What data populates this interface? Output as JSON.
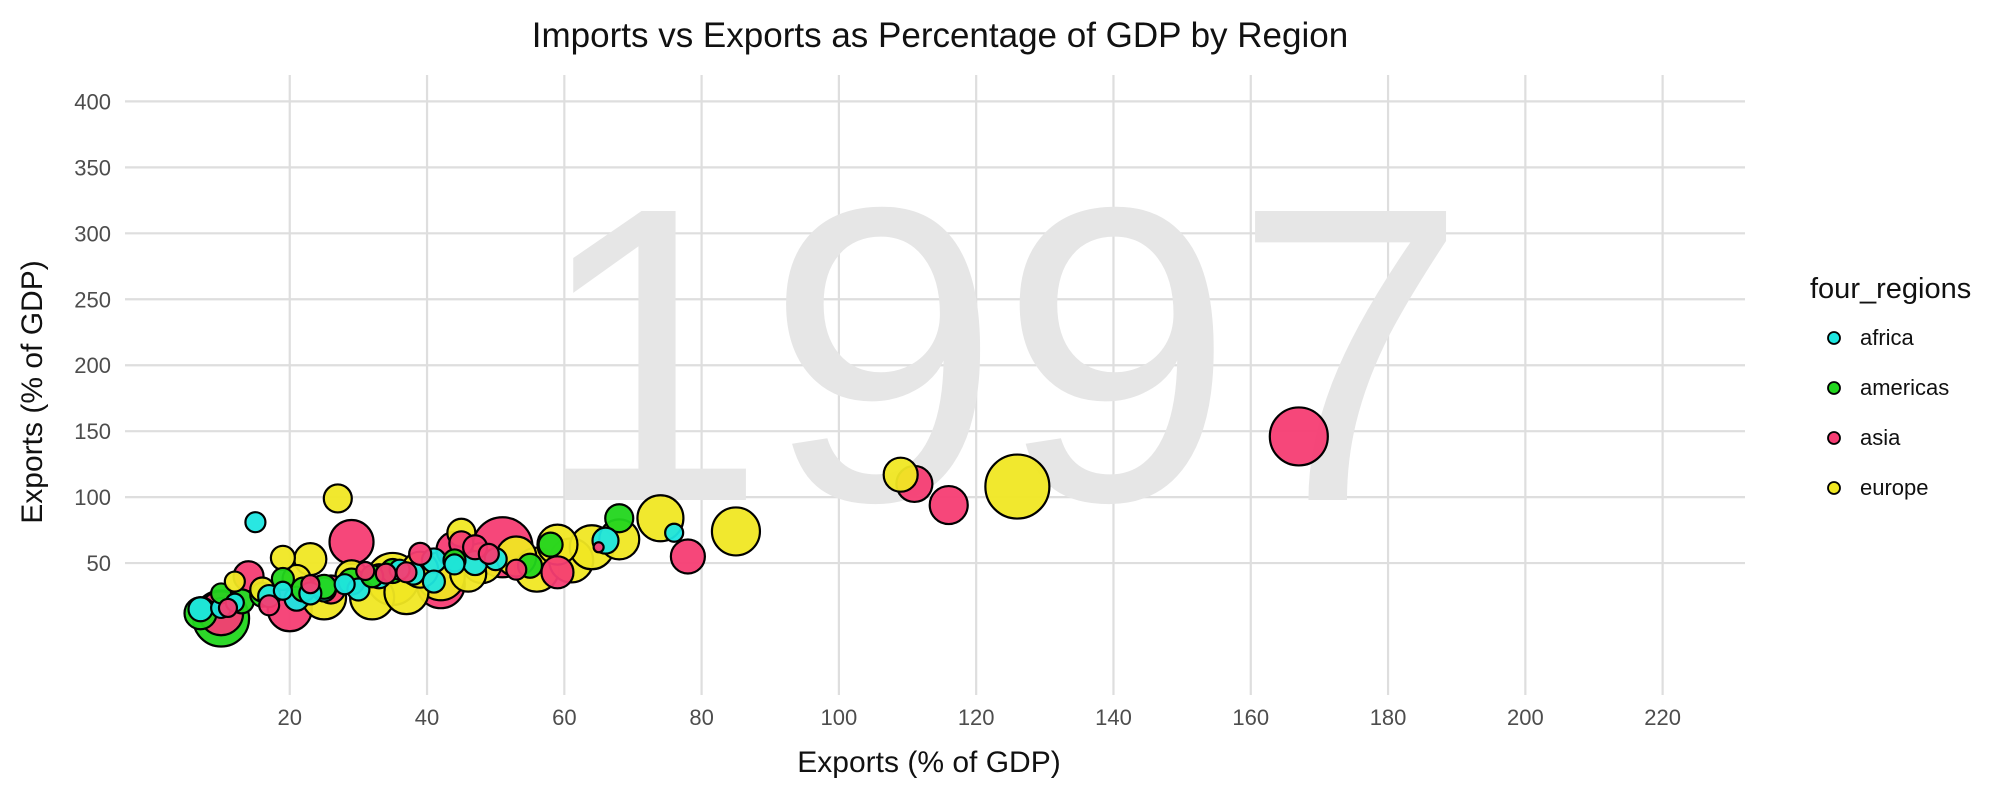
{
  "chart_data": {
    "type": "scatter",
    "title": "Imports vs Exports as Percentage of GDP by Region",
    "xlabel": "Exports (% of GDP)",
    "ylabel": "Exports (% of GDP)",
    "watermark_year": "1997",
    "xlim": [
      -4,
      232
    ],
    "ylim": [
      -50,
      420
    ],
    "x_ticks": [
      20,
      40,
      60,
      80,
      100,
      120,
      140,
      160,
      180,
      200,
      220
    ],
    "y_ticks": [
      50,
      100,
      150,
      200,
      250,
      300,
      350,
      400
    ],
    "grid": true,
    "legend_title": "four_regions",
    "legend_position": "right",
    "series": [
      {
        "name": "africa",
        "color": "#1ee6e0",
        "points": [
          {
            "x": 7,
            "y": 15,
            "s": 12
          },
          {
            "x": 10,
            "y": 16,
            "s": 10
          },
          {
            "x": 12,
            "y": 20,
            "s": 9
          },
          {
            "x": 15,
            "y": 81,
            "s": 10
          },
          {
            "x": 17,
            "y": 25,
            "s": 11
          },
          {
            "x": 19,
            "y": 29,
            "s": 9
          },
          {
            "x": 21,
            "y": 23,
            "s": 12
          },
          {
            "x": 23,
            "y": 27,
            "s": 11
          },
          {
            "x": 25,
            "y": 30,
            "s": 12
          },
          {
            "x": 28,
            "y": 34,
            "s": 10
          },
          {
            "x": 30,
            "y": 30,
            "s": 11
          },
          {
            "x": 33,
            "y": 40,
            "s": 12
          },
          {
            "x": 36,
            "y": 45,
            "s": 10
          },
          {
            "x": 38,
            "y": 42,
            "s": 11
          },
          {
            "x": 41,
            "y": 52,
            "s": 12
          },
          {
            "x": 41,
            "y": 36,
            "s": 11
          },
          {
            "x": 44,
            "y": 49,
            "s": 10
          },
          {
            "x": 47,
            "y": 50,
            "s": 12
          },
          {
            "x": 50,
            "y": 53,
            "s": 11
          },
          {
            "x": 66,
            "y": 67,
            "s": 13
          },
          {
            "x": 76,
            "y": 73,
            "s": 9
          }
        ]
      },
      {
        "name": "americas",
        "color": "#22d61e",
        "points": [
          {
            "x": 10,
            "y": 8,
            "s": 28
          },
          {
            "x": 7,
            "y": 12,
            "s": 16
          },
          {
            "x": 10,
            "y": 27,
            "s": 10
          },
          {
            "x": 13,
            "y": 21,
            "s": 12
          },
          {
            "x": 16,
            "y": 26,
            "s": 12
          },
          {
            "x": 19,
            "y": 38,
            "s": 11
          },
          {
            "x": 22,
            "y": 30,
            "s": 12
          },
          {
            "x": 25,
            "y": 32,
            "s": 12
          },
          {
            "x": 29,
            "y": 36,
            "s": 13
          },
          {
            "x": 32,
            "y": 40,
            "s": 11
          },
          {
            "x": 35,
            "y": 44,
            "s": 12
          },
          {
            "x": 44,
            "y": 52,
            "s": 11
          },
          {
            "x": 55,
            "y": 48,
            "s": 12
          },
          {
            "x": 58,
            "y": 64,
            "s": 12
          },
          {
            "x": 68,
            "y": 84,
            "s": 14
          }
        ]
      },
      {
        "name": "asia",
        "color": "#f53d73",
        "points": [
          {
            "x": 10,
            "y": 12,
            "s": 22
          },
          {
            "x": 11,
            "y": 16,
            "s": 9
          },
          {
            "x": 14,
            "y": 40,
            "s": 15
          },
          {
            "x": 17,
            "y": 18,
            "s": 10
          },
          {
            "x": 20,
            "y": 15,
            "s": 22
          },
          {
            "x": 23,
            "y": 34,
            "s": 9
          },
          {
            "x": 26,
            "y": 30,
            "s": 14
          },
          {
            "x": 29,
            "y": 66,
            "s": 22
          },
          {
            "x": 31,
            "y": 44,
            "s": 9
          },
          {
            "x": 34,
            "y": 42,
            "s": 10
          },
          {
            "x": 37,
            "y": 43,
            "s": 10
          },
          {
            "x": 39,
            "y": 57,
            "s": 11
          },
          {
            "x": 42,
            "y": 34,
            "s": 24
          },
          {
            "x": 44,
            "y": 60,
            "s": 18
          },
          {
            "x": 45,
            "y": 65,
            "s": 12
          },
          {
            "x": 47,
            "y": 62,
            "s": 12
          },
          {
            "x": 49,
            "y": 57,
            "s": 10
          },
          {
            "x": 51,
            "y": 62,
            "s": 30
          },
          {
            "x": 53,
            "y": 45,
            "s": 10
          },
          {
            "x": 59,
            "y": 43,
            "s": 16
          },
          {
            "x": 65,
            "y": 62,
            "s": 5
          },
          {
            "x": 78,
            "y": 55,
            "s": 17
          },
          {
            "x": 111,
            "y": 110,
            "s": 18
          },
          {
            "x": 116,
            "y": 94,
            "s": 19
          },
          {
            "x": 167,
            "y": 146,
            "s": 29
          }
        ]
      },
      {
        "name": "europe",
        "color": "#f0e723",
        "points": [
          {
            "x": 12,
            "y": 36,
            "s": 10
          },
          {
            "x": 16,
            "y": 30,
            "s": 12
          },
          {
            "x": 19,
            "y": 54,
            "s": 12
          },
          {
            "x": 21,
            "y": 38,
            "s": 14
          },
          {
            "x": 23,
            "y": 53,
            "s": 16
          },
          {
            "x": 25,
            "y": 24,
            "s": 22
          },
          {
            "x": 27,
            "y": 99,
            "s": 14
          },
          {
            "x": 29,
            "y": 40,
            "s": 16
          },
          {
            "x": 32,
            "y": 24,
            "s": 22
          },
          {
            "x": 35,
            "y": 38,
            "s": 26
          },
          {
            "x": 37,
            "y": 28,
            "s": 22
          },
          {
            "x": 39,
            "y": 45,
            "s": 18
          },
          {
            "x": 42,
            "y": 40,
            "s": 24
          },
          {
            "x": 45,
            "y": 73,
            "s": 14
          },
          {
            "x": 46,
            "y": 42,
            "s": 18
          },
          {
            "x": 48,
            "y": 50,
            "s": 20
          },
          {
            "x": 53,
            "y": 55,
            "s": 20
          },
          {
            "x": 56,
            "y": 45,
            "s": 22
          },
          {
            "x": 59,
            "y": 64,
            "s": 20
          },
          {
            "x": 61,
            "y": 52,
            "s": 22
          },
          {
            "x": 64,
            "y": 62,
            "s": 22
          },
          {
            "x": 68,
            "y": 68,
            "s": 20
          },
          {
            "x": 74,
            "y": 84,
            "s": 23
          },
          {
            "x": 85,
            "y": 74,
            "s": 24
          },
          {
            "x": 109,
            "y": 117,
            "s": 17
          },
          {
            "x": 126,
            "y": 108,
            "s": 32
          }
        ]
      }
    ]
  }
}
